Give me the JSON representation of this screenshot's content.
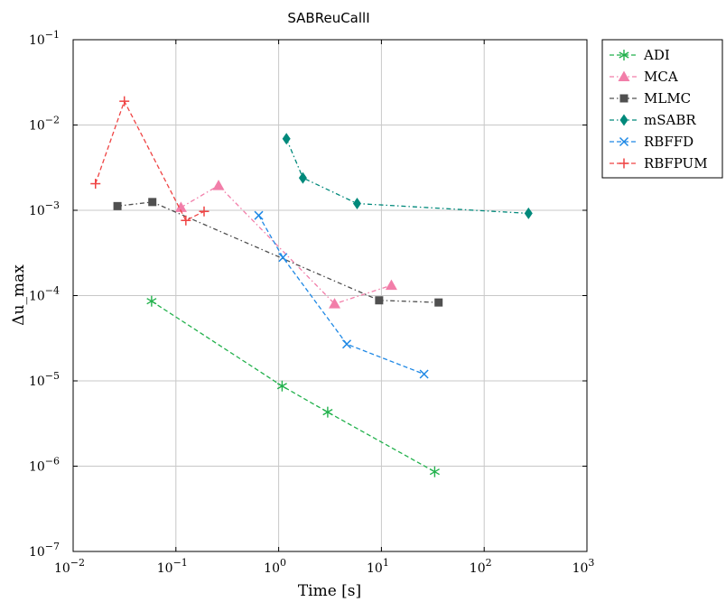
{
  "chart_data": {
    "type": "line",
    "title": "SABReuCallI",
    "xlabel": "Time [s]",
    "ylabel": "Δu_max",
    "xscale": "log",
    "yscale": "log",
    "xlim": [
      0.01,
      1000
    ],
    "ylim": [
      1e-07,
      0.1
    ],
    "grid": true,
    "legend_position": "outside-right-top",
    "x_ticks": [
      {
        "value": 0.01,
        "base": "10",
        "exp": "−2"
      },
      {
        "value": 0.1,
        "base": "10",
        "exp": "−1"
      },
      {
        "value": 1,
        "base": "10",
        "exp": "0"
      },
      {
        "value": 10,
        "base": "10",
        "exp": "1"
      },
      {
        "value": 100,
        "base": "10",
        "exp": "2"
      },
      {
        "value": 1000,
        "base": "10",
        "exp": "3"
      }
    ],
    "y_ticks": [
      {
        "value": 1e-07,
        "base": "10",
        "exp": "−7"
      },
      {
        "value": 1e-06,
        "base": "10",
        "exp": "−6"
      },
      {
        "value": 1e-05,
        "base": "10",
        "exp": "−5"
      },
      {
        "value": 0.0001,
        "base": "10",
        "exp": "−4"
      },
      {
        "value": 0.001,
        "base": "10",
        "exp": "−3"
      },
      {
        "value": 0.01,
        "base": "10",
        "exp": "−2"
      },
      {
        "value": 0.1,
        "base": "10",
        "exp": "−1"
      }
    ],
    "series": [
      {
        "name": "ADI",
        "color": "#22b14c",
        "marker": "asterisk",
        "dash": "5,3",
        "points": [
          [
            0.058,
            8.6e-05
          ],
          [
            1.08,
            8.7e-06
          ],
          [
            3.0,
            4.3e-06
          ],
          [
            33.0,
            8.6e-07
          ]
        ]
      },
      {
        "name": "MCA",
        "color": "#f27ea9",
        "marker": "triangle",
        "dash": "5,3,1.5,3",
        "points": [
          [
            0.112,
            0.00108
          ],
          [
            0.26,
            0.00195
          ],
          [
            3.5,
            8e-05
          ],
          [
            12.5,
            0.000132
          ]
        ]
      },
      {
        "name": "MLMC",
        "color": "#505050",
        "marker": "square",
        "dash": "5,3,1.5,3",
        "points": [
          [
            0.027,
            0.00112
          ],
          [
            0.059,
            0.00125
          ],
          [
            9.5,
            8.8e-05
          ],
          [
            36.0,
            8.3e-05
          ]
        ]
      },
      {
        "name": "mSABR",
        "color": "#00897b",
        "marker": "diamond",
        "dash": "5,3,1.5,3",
        "points": [
          [
            1.19,
            0.0069
          ],
          [
            1.72,
            0.0024
          ],
          [
            5.8,
            0.0012
          ],
          [
            270.0,
            0.00092
          ]
        ]
      },
      {
        "name": "RBFFD",
        "color": "#1e88e5",
        "marker": "cross",
        "dash": "5,3",
        "points": [
          [
            0.64,
            0.00087
          ],
          [
            1.1,
            0.00028
          ],
          [
            4.6,
            2.7e-05
          ],
          [
            26.0,
            1.2e-05
          ]
        ]
      },
      {
        "name": "RBFPUM",
        "color": "#ef4444",
        "marker": "plus",
        "dash": "5,3",
        "points": [
          [
            0.0165,
            0.00205
          ],
          [
            0.0315,
            0.019
          ],
          [
            0.125,
            0.00076
          ],
          [
            0.188,
            0.00097
          ]
        ]
      }
    ]
  }
}
